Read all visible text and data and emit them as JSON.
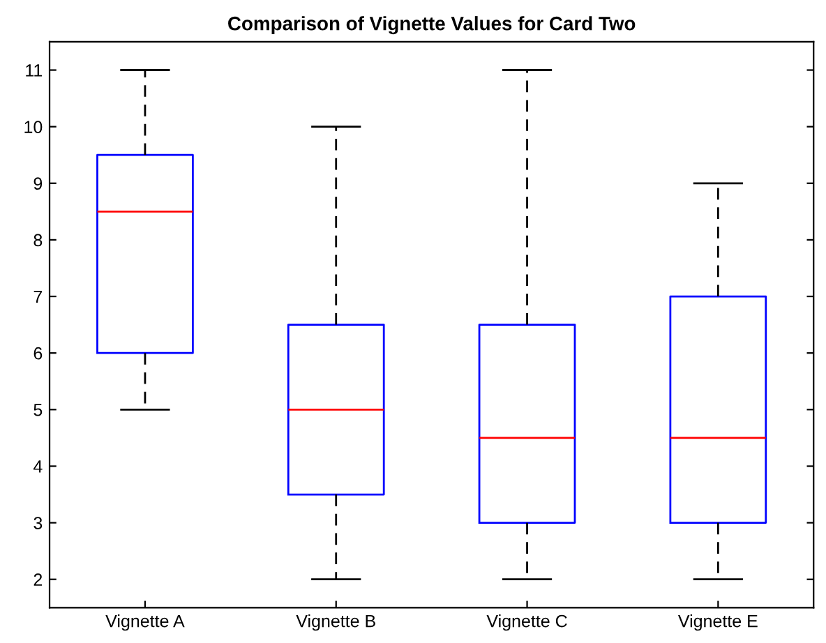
{
  "chart_data": {
    "type": "box",
    "title": "Comparison of Vignette Values for Card Two",
    "categories": [
      "Vignette A",
      "Vignette B",
      "Vignette C",
      "Vignette E"
    ],
    "boxes": [
      {
        "low": 5,
        "q1": 6,
        "median": 8.5,
        "q3": 9.5,
        "high": 11
      },
      {
        "low": 2,
        "q1": 3.5,
        "median": 5,
        "q3": 6.5,
        "high": 10
      },
      {
        "low": 2,
        "q1": 3,
        "median": 4.5,
        "q3": 6.5,
        "high": 11
      },
      {
        "low": 2,
        "q1": 3,
        "median": 4.5,
        "q3": 7,
        "high": 9
      }
    ],
    "color": "#0000ff",
    "ylim": [
      1.5,
      11.5
    ],
    "yticks": [
      2,
      3,
      4,
      5,
      6,
      7,
      8,
      9,
      10,
      11
    ],
    "grid": false,
    "line_style": "dashed"
  }
}
